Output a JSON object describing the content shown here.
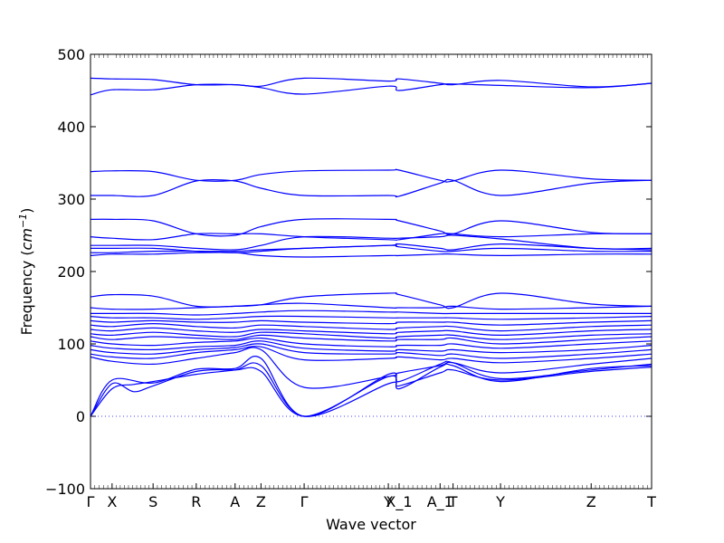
{
  "chart_data": {
    "type": "line",
    "title": "",
    "xlabel": "Wave vector",
    "ylabel": "Frequency (cm^-1)",
    "ylabel_prefix": "Frequency (",
    "ylabel_unit": "cm",
    "ylabel_exp": "−1",
    "ylabel_suffix": ")",
    "ylim": [
      -100,
      500
    ],
    "yticks": [
      -100,
      0,
      100,
      200,
      300,
      400,
      500
    ],
    "xlim": [
      0,
      13.0
    ],
    "high_symmetry_points": [
      {
        "label": "Γ",
        "x": 0.0
      },
      {
        "label": "X",
        "x": 0.5
      },
      {
        "label": "S",
        "x": 1.45
      },
      {
        "label": "R",
        "x": 2.45
      },
      {
        "label": "A",
        "x": 3.35
      },
      {
        "label": "Z",
        "x": 3.95
      },
      {
        "label": "Γ",
        "x": 4.95
      },
      {
        "label": "Y",
        "x": 6.9
      },
      {
        "label": "X_1",
        "x": 7.15
      },
      {
        "label": "A_1",
        "x": 8.1
      },
      {
        "label": "T",
        "x": 8.4
      },
      {
        "label": "Y",
        "x": 9.5
      },
      {
        "label": "Z",
        "x": 11.6
      },
      {
        "label": "T",
        "x": 13.0
      }
    ],
    "series": [
      {
        "x": [
          0,
          0.5,
          1.0,
          1.45,
          2.45,
          3.35,
          3.95,
          4.95,
          6.9,
          7.15,
          8.1,
          8.4,
          9.5,
          11.6,
          13.0
        ],
        "values": [
          0,
          38,
          44,
          48,
          58,
          64,
          70,
          0,
          45,
          42,
          60,
          64,
          50,
          62,
          68
        ]
      },
      {
        "x": [
          0,
          0.5,
          1.0,
          1.45,
          2.45,
          3.35,
          3.95,
          4.95,
          6.9,
          7.15,
          8.1,
          8.4,
          9.5,
          11.6,
          13.0
        ],
        "values": [
          0,
          45,
          34,
          42,
          62,
          64,
          62,
          0,
          55,
          38,
          68,
          70,
          48,
          66,
          70
        ]
      },
      {
        "x": [
          0,
          0.5,
          1.45,
          2.45,
          3.35,
          3.95,
          4.95,
          6.9,
          7.15,
          8.1,
          8.4,
          9.5,
          11.6,
          13.0
        ],
        "values": [
          0,
          50,
          46,
          65,
          66,
          80,
          0,
          58,
          48,
          72,
          74,
          52,
          64,
          72
        ]
      },
      {
        "x": [
          0,
          0.5,
          1.45,
          2.45,
          3.35,
          3.95,
          4.95,
          6.9,
          7.15,
          8.1,
          8.4,
          9.5,
          11.6,
          13.0
        ],
        "values": [
          82,
          76,
          72,
          80,
          88,
          92,
          40,
          55,
          60,
          70,
          74,
          60,
          72,
          80
        ]
      },
      {
        "x": [
          0,
          0.5,
          1.45,
          2.45,
          3.35,
          3.95,
          4.95,
          6.9,
          7.15,
          8.1,
          8.4,
          9.5,
          11.6,
          13.0
        ],
        "values": [
          86,
          82,
          80,
          88,
          92,
          96,
          78,
          80,
          82,
          78,
          80,
          74,
          80,
          86
        ]
      },
      {
        "x": [
          0,
          0.5,
          1.45,
          2.45,
          3.35,
          3.95,
          4.95,
          6.9,
          7.15,
          8.1,
          8.4,
          9.5,
          11.6,
          13.0
        ],
        "values": [
          92,
          88,
          86,
          92,
          95,
          100,
          88,
          86,
          88,
          84,
          86,
          80,
          86,
          92
        ]
      },
      {
        "x": [
          0,
          0.5,
          1.45,
          2.45,
          3.35,
          3.95,
          4.95,
          6.9,
          7.15,
          8.1,
          8.4,
          9.5,
          11.6,
          13.0
        ],
        "values": [
          98,
          94,
          92,
          96,
          98,
          104,
          94,
          90,
          92,
          90,
          92,
          88,
          92,
          98
        ]
      },
      {
        "x": [
          0,
          0.5,
          1.45,
          2.45,
          3.35,
          3.95,
          4.95,
          6.9,
          7.15,
          8.1,
          8.4,
          9.5,
          11.6,
          13.0
        ],
        "values": [
          104,
          100,
          98,
          102,
          104,
          108,
          100,
          96,
          98,
          98,
          100,
          94,
          100,
          104
        ]
      },
      {
        "x": [
          0,
          0.5,
          1.45,
          2.45,
          3.35,
          3.95,
          4.95,
          6.9,
          7.15,
          8.1,
          8.4,
          9.5,
          11.6,
          13.0
        ],
        "values": [
          110,
          106,
          110,
          108,
          106,
          112,
          108,
          104,
          106,
          106,
          108,
          100,
          106,
          110
        ]
      },
      {
        "x": [
          0,
          0.5,
          1.45,
          2.45,
          3.35,
          3.95,
          4.95,
          6.9,
          7.15,
          8.1,
          8.4,
          9.5,
          11.6,
          13.0
        ],
        "values": [
          114,
          112,
          116,
          112,
          110,
          116,
          114,
          108,
          110,
          112,
          112,
          106,
          112,
          114
        ]
      },
      {
        "x": [
          0,
          0.5,
          1.45,
          2.45,
          3.35,
          3.95,
          4.95,
          6.9,
          7.15,
          8.1,
          8.4,
          9.5,
          11.6,
          13.0
        ],
        "values": [
          120,
          118,
          122,
          118,
          116,
          120,
          118,
          114,
          116,
          118,
          118,
          112,
          118,
          120
        ]
      },
      {
        "x": [
          0,
          0.5,
          1.45,
          2.45,
          3.35,
          3.95,
          4.95,
          6.9,
          7.15,
          8.1,
          8.4,
          9.5,
          11.6,
          13.0
        ],
        "values": [
          126,
          124,
          128,
          124,
          122,
          126,
          124,
          120,
          122,
          124,
          124,
          118,
          124,
          126
        ]
      },
      {
        "x": [
          0,
          0.5,
          1.45,
          2.45,
          3.35,
          3.95,
          4.95,
          6.9,
          7.15,
          8.1,
          8.4,
          9.5,
          11.6,
          13.0
        ],
        "values": [
          132,
          130,
          132,
          130,
          130,
          132,
          130,
          128,
          130,
          130,
          130,
          126,
          130,
          132
        ]
      },
      {
        "x": [
          0,
          0.5,
          1.45,
          2.45,
          3.35,
          3.95,
          4.95,
          6.9,
          7.15,
          8.1,
          8.4,
          9.5,
          11.6,
          13.0
        ],
        "values": [
          138,
          136,
          136,
          134,
          136,
          138,
          138,
          136,
          136,
          136,
          136,
          134,
          136,
          138
        ]
      },
      {
        "x": [
          0,
          0.5,
          1.45,
          2.45,
          3.35,
          3.95,
          4.95,
          6.9,
          7.15,
          8.1,
          8.4,
          9.5,
          11.6,
          13.0
        ],
        "values": [
          142,
          142,
          142,
          140,
          142,
          144,
          146,
          144,
          144,
          142,
          142,
          142,
          142,
          142
        ]
      },
      {
        "x": [
          0,
          0.5,
          1.45,
          2.45,
          3.35,
          3.95,
          4.95,
          6.9,
          7.15,
          8.1,
          8.4,
          9.5,
          11.6,
          13.0
        ],
        "values": [
          150,
          148,
          148,
          150,
          152,
          154,
          156,
          150,
          150,
          150,
          152,
          148,
          150,
          152
        ]
      },
      {
        "x": [
          0,
          0.5,
          1.45,
          2.45,
          3.35,
          3.95,
          4.95,
          6.9,
          7.15,
          8.1,
          8.4,
          9.5,
          11.6,
          13.0
        ],
        "values": [
          165,
          168,
          166,
          152,
          152,
          154,
          165,
          170,
          168,
          154,
          150,
          170,
          155,
          152
        ]
      },
      {
        "x": [
          0,
          0.5,
          1.45,
          2.45,
          3.35,
          3.95,
          4.95,
          6.9,
          7.15,
          8.1,
          8.4,
          9.5,
          11.6,
          13.0
        ],
        "values": [
          222,
          224,
          224,
          226,
          226,
          222,
          220,
          222,
          222,
          224,
          224,
          222,
          224,
          224
        ]
      },
      {
        "x": [
          0,
          0.5,
          1.45,
          2.45,
          3.35,
          3.95,
          4.95,
          6.9,
          7.15,
          8.1,
          8.4,
          9.5,
          11.6,
          13.0
        ],
        "values": [
          226,
          226,
          228,
          228,
          228,
          230,
          232,
          236,
          234,
          228,
          228,
          232,
          228,
          228
        ]
      },
      {
        "x": [
          0,
          0.5,
          1.45,
          2.45,
          3.35,
          3.95,
          4.95,
          6.9,
          7.15,
          8.1,
          8.4,
          9.5,
          11.6,
          13.0
        ],
        "values": [
          232,
          232,
          232,
          228,
          226,
          228,
          232,
          236,
          238,
          232,
          230,
          238,
          232,
          230
        ]
      },
      {
        "x": [
          0,
          0.5,
          1.45,
          2.45,
          3.35,
          3.95,
          4.95,
          6.9,
          7.15,
          8.1,
          8.4,
          9.5,
          11.6,
          13.0
        ],
        "values": [
          236,
          236,
          236,
          232,
          230,
          236,
          248,
          246,
          246,
          248,
          250,
          245,
          232,
          232
        ]
      },
      {
        "x": [
          0,
          0.5,
          1.45,
          2.45,
          3.35,
          3.95,
          4.95,
          6.9,
          7.15,
          8.1,
          8.4,
          9.5,
          11.6,
          13.0
        ],
        "values": [
          248,
          246,
          244,
          252,
          252,
          252,
          248,
          244,
          244,
          252,
          252,
          248,
          252,
          252
        ]
      },
      {
        "x": [
          0,
          0.5,
          1.45,
          2.45,
          3.35,
          3.95,
          4.95,
          6.9,
          7.15,
          8.1,
          8.4,
          9.5,
          11.6,
          13.0
        ],
        "values": [
          272,
          272,
          270,
          252,
          250,
          262,
          272,
          272,
          270,
          256,
          252,
          270,
          254,
          252
        ]
      },
      {
        "x": [
          0,
          0.5,
          1.45,
          2.45,
          3.35,
          3.95,
          4.95,
          6.9,
          7.15,
          8.1,
          8.4,
          9.5,
          11.6,
          13.0
        ],
        "values": [
          305,
          305,
          305,
          325,
          325,
          315,
          305,
          305,
          304,
          322,
          326,
          305,
          322,
          326
        ]
      },
      {
        "x": [
          0,
          0.5,
          1.45,
          2.45,
          3.35,
          3.95,
          4.95,
          6.9,
          7.15,
          8.1,
          8.4,
          9.5,
          11.6,
          13.0
        ],
        "values": [
          338,
          339,
          338,
          326,
          326,
          334,
          339,
          340,
          340,
          326,
          325,
          340,
          328,
          326
        ]
      },
      {
        "x": [
          0,
          0.5,
          1.45,
          2.45,
          3.35,
          3.95,
          4.95,
          6.9,
          7.15,
          8.1,
          8.4,
          9.5,
          11.6,
          13.0
        ],
        "values": [
          444,
          451,
          451,
          458,
          458,
          454,
          445,
          456,
          450,
          458,
          459,
          457,
          454,
          460
        ]
      },
      {
        "x": [
          0,
          0.5,
          1.45,
          2.45,
          3.35,
          3.95,
          4.95,
          6.9,
          7.15,
          8.1,
          8.4,
          9.5,
          11.6,
          13.0
        ],
        "values": [
          467,
          466,
          465,
          458,
          458,
          456,
          467,
          463,
          466,
          460,
          458,
          464,
          455,
          460
        ]
      }
    ]
  }
}
